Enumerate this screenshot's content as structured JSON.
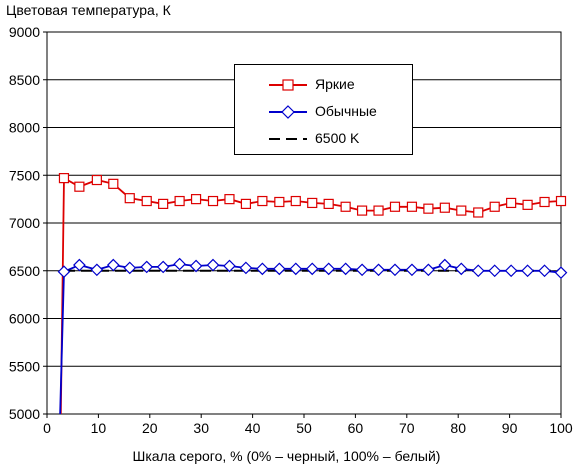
{
  "chart_data": {
    "type": "line",
    "title": "Цветовая температура, К",
    "xlabel": "Шкала серого, % (0% – черный, 100% – белый)",
    "ylabel": "",
    "xlim": [
      0,
      100
    ],
    "ylim": [
      5000,
      9000
    ],
    "x_ticks": [
      "0",
      "10",
      "20",
      "30",
      "40",
      "50",
      "60",
      "70",
      "80",
      "90",
      "100"
    ],
    "y_ticks": [
      "5000",
      "5500",
      "6000",
      "6500",
      "7000",
      "7500",
      "8000",
      "8500",
      "9000"
    ],
    "grid": "horizontal",
    "legend_position": "top-center",
    "series": [
      {
        "name": "Яркие",
        "color": "#dd0000",
        "marker": "square",
        "x": [
          2.5,
          3.3,
          6.3,
          9.7,
          12.9,
          16.1,
          19.4,
          22.6,
          25.8,
          29.0,
          32.3,
          35.5,
          38.7,
          41.9,
          45.2,
          48.4,
          51.6,
          54.8,
          58.1,
          61.3,
          64.5,
          67.7,
          71.0,
          74.2,
          77.4,
          80.6,
          83.9,
          87.1,
          90.3,
          93.5,
          96.8,
          100.0
        ],
        "y": [
          4300,
          7470,
          7380,
          7450,
          7410,
          7260,
          7230,
          7200,
          7230,
          7250,
          7230,
          7250,
          7200,
          7230,
          7220,
          7230,
          7210,
          7200,
          7170,
          7130,
          7130,
          7170,
          7170,
          7150,
          7160,
          7130,
          7110,
          7170,
          7210,
          7190,
          7220,
          7230
        ]
      },
      {
        "name": "Обычные",
        "color": "#0000cc",
        "marker": "diamond",
        "x": [
          2.2,
          3.3,
          6.3,
          9.7,
          12.9,
          16.1,
          19.4,
          22.6,
          25.8,
          29.0,
          32.3,
          35.5,
          38.7,
          41.9,
          45.2,
          48.4,
          51.6,
          54.8,
          58.1,
          61.3,
          64.5,
          67.7,
          71.0,
          74.2,
          77.4,
          80.6,
          83.9,
          87.1,
          90.3,
          93.5,
          96.8,
          100.0
        ],
        "y": [
          4300,
          6490,
          6560,
          6510,
          6560,
          6530,
          6540,
          6540,
          6570,
          6550,
          6560,
          6550,
          6530,
          6520,
          6520,
          6520,
          6520,
          6520,
          6520,
          6510,
          6510,
          6510,
          6510,
          6510,
          6560,
          6520,
          6500,
          6500,
          6500,
          6500,
          6500,
          6480
        ]
      },
      {
        "name": "6500 K",
        "color": "#000000",
        "marker": "none",
        "dashed": true,
        "x": [
          3.3,
          100
        ],
        "y": [
          6500,
          6500
        ]
      }
    ]
  }
}
